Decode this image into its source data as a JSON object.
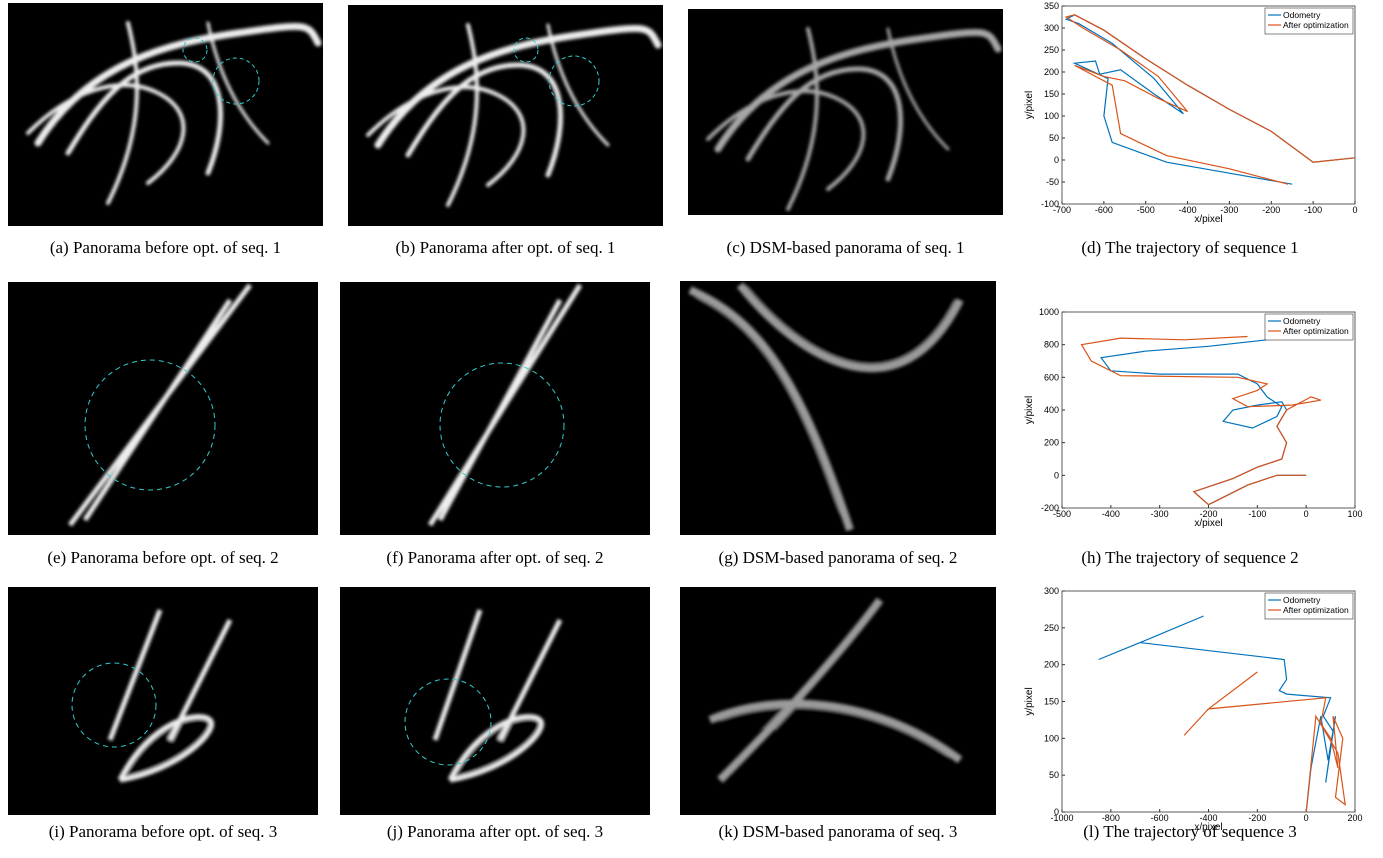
{
  "figure": {
    "captions": [
      "(a) Panorama before opt. of seq. 1",
      "(b) Panorama after opt. of seq. 1",
      "(c) DSM-based panorama of seq. 1",
      "(d) The trajectory of sequence 1",
      "(e) Panorama before opt. of seq. 2",
      "(f) Panorama after opt. of seq. 2",
      "(g) DSM-based panorama of seq. 2",
      "(h) The trajectory of sequence 2",
      "(i) Panorama before opt. of seq. 3",
      "(j) Panorama after opt. of seq. 3",
      "(k) DSM-based panorama of seq. 3",
      "(l) The trajectory of sequence 3"
    ]
  },
  "chart_data": [
    {
      "type": "line",
      "x_label": "x/pixel",
      "y_label": "y/pixel",
      "xlim": [
        -700,
        0
      ],
      "xticks": [
        -700,
        -600,
        -500,
        -400,
        -300,
        -200,
        -100,
        0
      ],
      "ylim": [
        -100,
        350
      ],
      "yticks": [
        -100,
        -50,
        0,
        50,
        100,
        150,
        200,
        250,
        300,
        350
      ],
      "legend": "top-right",
      "series": [
        {
          "name": "Odometry",
          "color": "#0072bd",
          "x": [
            0,
            -100,
            -200,
            -300,
            -400,
            -500,
            -600,
            -670,
            -690,
            -660,
            -580,
            -480,
            -410,
            -480,
            -560,
            -610,
            -620,
            -670,
            -590,
            -600,
            -580,
            -450,
            -300,
            -150
          ],
          "values": [
            5,
            -5,
            65,
            115,
            170,
            230,
            295,
            330,
            320,
            310,
            265,
            185,
            105,
            150,
            205,
            195,
            225,
            220,
            185,
            100,
            40,
            -5,
            -30,
            -55
          ]
        },
        {
          "name": "After optimization",
          "color": "#d95319",
          "x": [
            0,
            -100,
            -200,
            -300,
            -400,
            -500,
            -600,
            -670,
            -690,
            -650,
            -560,
            -470,
            -400,
            -470,
            -550,
            -600,
            -670,
            -640,
            -580,
            -560,
            -450,
            -300,
            -160
          ],
          "values": [
            5,
            -5,
            65,
            115,
            170,
            230,
            295,
            330,
            325,
            300,
            250,
            190,
            110,
            140,
            180,
            190,
            215,
            200,
            170,
            60,
            10,
            -20,
            -55
          ]
        }
      ]
    },
    {
      "type": "line",
      "x_label": "x/pixel",
      "y_label": "y/pixel",
      "xlim": [
        -500,
        100
      ],
      "xticks": [
        -500,
        -400,
        -300,
        -200,
        -100,
        0,
        100
      ],
      "ylim": [
        -200,
        1000
      ],
      "yticks": [
        -200,
        0,
        200,
        400,
        600,
        800,
        1000
      ],
      "legend": "top-right",
      "series": [
        {
          "name": "Odometry",
          "color": "#0072bd",
          "x": [
            0,
            -60,
            -120,
            -180,
            -200,
            -230,
            -150,
            -100,
            -50,
            -40,
            -60,
            -40,
            -50,
            -100,
            -150,
            -170,
            -110,
            -60,
            -50,
            -80,
            -100,
            -140,
            -300,
            -400,
            -420,
            -330,
            -200,
            -80
          ],
          "values": [
            0,
            0,
            -60,
            -150,
            -180,
            -100,
            -20,
            50,
            100,
            200,
            300,
            400,
            450,
            430,
            400,
            330,
            290,
            360,
            420,
            480,
            560,
            620,
            620,
            640,
            720,
            760,
            790,
            830
          ]
        },
        {
          "name": "After optimization",
          "color": "#d95319",
          "x": [
            0,
            -60,
            -120,
            -180,
            -200,
            -230,
            -150,
            -100,
            -50,
            -40,
            -60,
            -40,
            10,
            30,
            -30,
            -120,
            -150,
            -100,
            -80,
            -140,
            -380,
            -440,
            -460,
            -380,
            -250,
            -120
          ],
          "values": [
            0,
            0,
            -60,
            -150,
            -180,
            -100,
            -20,
            50,
            100,
            200,
            300,
            400,
            480,
            460,
            430,
            420,
            470,
            520,
            560,
            600,
            610,
            700,
            800,
            840,
            830,
            850
          ]
        }
      ]
    },
    {
      "type": "line",
      "x_label": "x/pixel",
      "y_label": "y/pixel",
      "xlim": [
        -1000,
        200
      ],
      "xticks": [
        -1000,
        -800,
        -600,
        -400,
        -200,
        0,
        200
      ],
      "ylim": [
        0,
        300
      ],
      "yticks": [
        0,
        50,
        100,
        150,
        200,
        250,
        300
      ],
      "legend": "top-right",
      "series": [
        {
          "name": "Odometry",
          "color": "#0072bd",
          "x": [
            -850,
            -680,
            -420,
            -680,
            -90,
            -80,
            -110,
            -80,
            100,
            70,
            110,
            80,
            120,
            90,
            60,
            20,
            0
          ],
          "values": [
            207,
            230,
            266,
            230,
            207,
            180,
            165,
            160,
            155,
            130,
            110,
            40,
            130,
            70,
            130,
            60,
            0
          ]
        },
        {
          "name": "After optimization",
          "color": "#d95319",
          "x": [
            -500,
            -400,
            -200,
            -400,
            80,
            60,
            100,
            130,
            110,
            150,
            120,
            160,
            130,
            40,
            0
          ],
          "values": [
            104,
            140,
            190,
            140,
            155,
            120,
            100,
            60,
            130,
            100,
            20,
            10,
            80,
            130,
            0
          ]
        }
      ]
    }
  ]
}
